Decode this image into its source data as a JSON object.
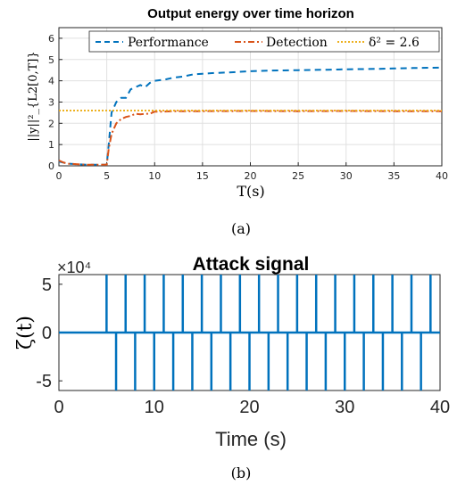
{
  "chart_data": [
    {
      "type": "line",
      "title": "Output energy over time horizon",
      "xlabel": "T(s)",
      "ylabel": "||y||²_{L2[0,T]}",
      "xlim": [
        0,
        40
      ],
      "ylim": [
        0,
        6.5
      ],
      "x_ticks": [
        "0",
        "5",
        "10",
        "15",
        "20",
        "25",
        "30",
        "35",
        "40"
      ],
      "y_ticks": [
        "0",
        "1",
        "2",
        "3",
        "4",
        "5",
        "6"
      ],
      "grid": true,
      "legend_position": "top",
      "series": [
        {
          "name": "Performance",
          "color": "#0072BD",
          "style": "dashed",
          "x": [
            0,
            1,
            2,
            3,
            4,
            5,
            5.2,
            5.5,
            6,
            6.5,
            7,
            7.5,
            8,
            8.5,
            9,
            9.5,
            10,
            11,
            12,
            13,
            14,
            15,
            16,
            18,
            20,
            22,
            25,
            28,
            30,
            33,
            35,
            37,
            40
          ],
          "y": [
            0.2,
            0.1,
            0.07,
            0.05,
            0.05,
            0.05,
            1.0,
            2.5,
            3.0,
            3.2,
            3.2,
            3.6,
            3.7,
            3.8,
            3.7,
            3.9,
            4.0,
            4.05,
            4.15,
            4.2,
            4.3,
            4.33,
            4.36,
            4.4,
            4.45,
            4.48,
            4.5,
            4.52,
            4.54,
            4.56,
            4.58,
            4.6,
            4.62
          ]
        },
        {
          "name": "Detection",
          "color": "#D95319",
          "style": "dashdot",
          "x": [
            0,
            0.5,
            1,
            2,
            3,
            4,
            5,
            5.2,
            5.5,
            6,
            6.5,
            7,
            7.5,
            8,
            8.5,
            9,
            9.5,
            10,
            11,
            12,
            15,
            20,
            25,
            30,
            35,
            40
          ],
          "y": [
            0.25,
            0.15,
            0.1,
            0.07,
            0.05,
            0.05,
            0.05,
            0.8,
            1.5,
            2.0,
            2.2,
            2.3,
            2.35,
            2.45,
            2.42,
            2.45,
            2.45,
            2.55,
            2.55,
            2.57,
            2.57,
            2.58,
            2.57,
            2.58,
            2.57,
            2.57
          ]
        },
        {
          "name": "δ² = 2.6",
          "color": "#EDB120",
          "style": "dotted",
          "x": [
            0,
            40
          ],
          "y": [
            2.6,
            2.6
          ]
        }
      ]
    },
    {
      "type": "line",
      "title": "Attack signal",
      "xlabel": "Time (s)",
      "ylabel": "ζ(t)",
      "xlim": [
        0,
        40
      ],
      "ylim": [
        -6,
        6
      ],
      "y_scale_label": "×10⁴",
      "x_ticks": [
        "0",
        "10",
        "20",
        "30",
        "40"
      ],
      "y_ticks": [
        "-5",
        "0",
        "5"
      ],
      "grid": false,
      "series": [
        {
          "color": "#0072BD",
          "baseline": 0,
          "pulses_positive_x": [
            5,
            7,
            9,
            11,
            13,
            15,
            17,
            19,
            21,
            23,
            25,
            27,
            29,
            31,
            33,
            35,
            37,
            39
          ],
          "pulses_negative_x": [
            6,
            8,
            10,
            12,
            14,
            16,
            18,
            20,
            22,
            24,
            26,
            28,
            30,
            32,
            34,
            36,
            38
          ],
          "pulse_amplitude": 6
        }
      ]
    }
  ],
  "captions": {
    "a": "(a)",
    "b": "(b)"
  }
}
